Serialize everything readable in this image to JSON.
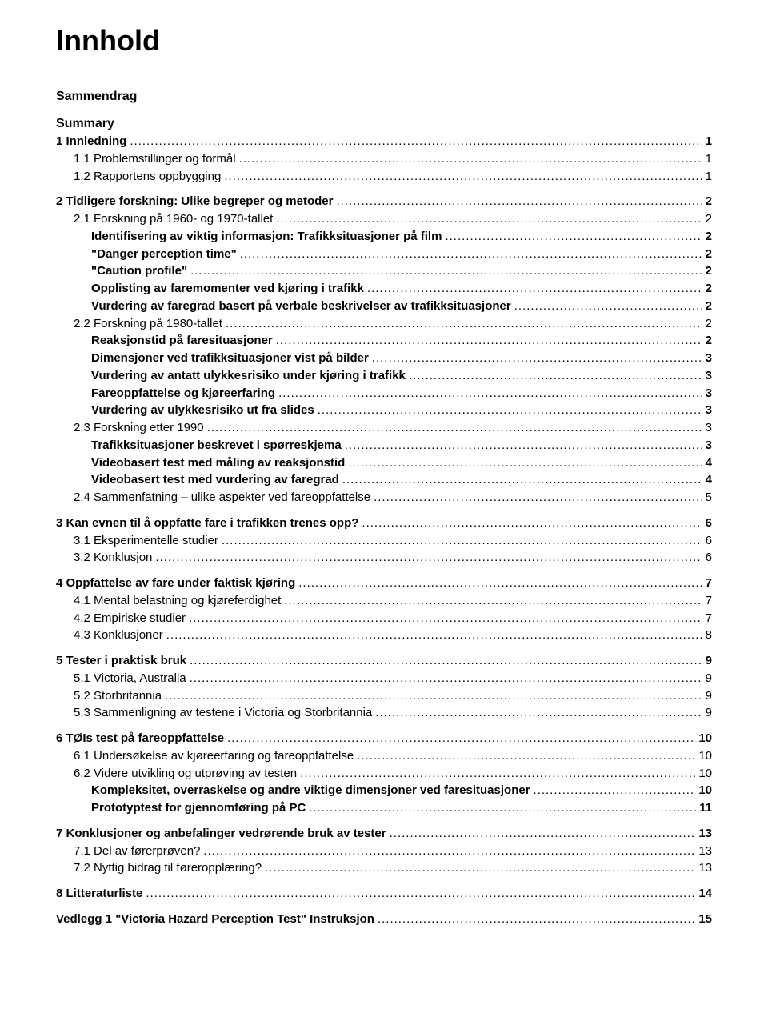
{
  "title": "Innhold",
  "preHeadings": [
    "Sammendrag",
    "Summary"
  ],
  "entries": [
    {
      "level": 0,
      "bold": true,
      "label": "1 Innledning",
      "page": "1",
      "gapBefore": false
    },
    {
      "level": 1,
      "bold": false,
      "label": "1.1 Problemstillinger og formål",
      "page": "1",
      "gapBefore": false
    },
    {
      "level": 1,
      "bold": false,
      "label": "1.2 Rapportens oppbygging",
      "page": "1",
      "gapBefore": false
    },
    {
      "level": 0,
      "bold": true,
      "label": "2 Tidligere forskning: Ulike begreper og metoder",
      "page": "2",
      "gapBefore": true
    },
    {
      "level": 1,
      "bold": false,
      "label": "2.1 Forskning på 1960- og 1970-tallet",
      "page": "2",
      "gapBefore": false
    },
    {
      "level": 2,
      "bold": true,
      "label": "Identifisering av viktig informasjon: Trafikksituasjoner på film",
      "page": "2",
      "gapBefore": false
    },
    {
      "level": 2,
      "bold": true,
      "label": "\"Danger perception time\"",
      "page": "2",
      "gapBefore": false
    },
    {
      "level": 2,
      "bold": true,
      "label": "\"Caution profile\"",
      "page": "2",
      "gapBefore": false
    },
    {
      "level": 2,
      "bold": true,
      "label": "Opplisting av faremomenter ved kjøring i trafikk",
      "page": "2",
      "gapBefore": false
    },
    {
      "level": 2,
      "bold": true,
      "label": "Vurdering av faregrad basert på verbale beskrivelser av trafikksituasjoner",
      "page": "2",
      "gapBefore": false
    },
    {
      "level": 1,
      "bold": false,
      "label": "2.2 Forskning på 1980-tallet",
      "page": "2",
      "gapBefore": false
    },
    {
      "level": 2,
      "bold": true,
      "label": "Reaksjonstid på faresituasjoner",
      "page": "2",
      "gapBefore": false
    },
    {
      "level": 2,
      "bold": true,
      "label": "Dimensjoner ved trafikksituasjoner vist på bilder",
      "page": "3",
      "gapBefore": false
    },
    {
      "level": 2,
      "bold": true,
      "label": "Vurdering av antatt ulykkesrisiko under kjøring i trafikk",
      "page": "3",
      "gapBefore": false
    },
    {
      "level": 2,
      "bold": true,
      "label": "Fareoppfattelse og kjøreerfaring",
      "page": "3",
      "gapBefore": false
    },
    {
      "level": 2,
      "bold": true,
      "label": "Vurdering av ulykkesrisiko ut fra slides",
      "page": "3",
      "gapBefore": false
    },
    {
      "level": 1,
      "bold": false,
      "label": "2.3 Forskning etter 1990",
      "page": "3",
      "gapBefore": false
    },
    {
      "level": 2,
      "bold": true,
      "label": "Trafikksituasjoner beskrevet i spørreskjema",
      "page": "3",
      "gapBefore": false
    },
    {
      "level": 2,
      "bold": true,
      "label": "Videobasert test med måling av reaksjonstid",
      "page": "4",
      "gapBefore": false
    },
    {
      "level": 2,
      "bold": true,
      "label": "Videobasert test med vurdering av faregrad",
      "page": "4",
      "gapBefore": false
    },
    {
      "level": 1,
      "bold": false,
      "label": "2.4 Sammenfatning – ulike aspekter ved fareoppfattelse",
      "page": "5",
      "gapBefore": false
    },
    {
      "level": 0,
      "bold": true,
      "label": "3 Kan evnen til å oppfatte fare i trafikken trenes opp?",
      "page": "6",
      "gapBefore": true
    },
    {
      "level": 1,
      "bold": false,
      "label": "3.1 Eksperimentelle studier",
      "page": "6",
      "gapBefore": false
    },
    {
      "level": 1,
      "bold": false,
      "label": "3.2 Konklusjon",
      "page": "6",
      "gapBefore": false
    },
    {
      "level": 0,
      "bold": true,
      "label": "4 Oppfattelse av fare under faktisk kjøring",
      "page": "7",
      "gapBefore": true
    },
    {
      "level": 1,
      "bold": false,
      "label": "4.1 Mental belastning og kjøreferdighet",
      "page": "7",
      "gapBefore": false
    },
    {
      "level": 1,
      "bold": false,
      "label": "4.2 Empiriske studier",
      "page": "7",
      "gapBefore": false
    },
    {
      "level": 1,
      "bold": false,
      "label": "4.3 Konklusjoner",
      "page": "8",
      "gapBefore": false
    },
    {
      "level": 0,
      "bold": true,
      "label": "5 Tester i praktisk bruk",
      "page": "9",
      "gapBefore": true
    },
    {
      "level": 1,
      "bold": false,
      "label": "5.1 Victoria, Australia",
      "page": "9",
      "gapBefore": false
    },
    {
      "level": 1,
      "bold": false,
      "label": "5.2 Storbritannia",
      "page": "9",
      "gapBefore": false
    },
    {
      "level": 1,
      "bold": false,
      "label": "5.3 Sammenligning av testene i Victoria og Storbritannia",
      "page": "9",
      "gapBefore": false
    },
    {
      "level": 0,
      "bold": true,
      "label": "6 TØIs test på fareoppfattelse",
      "page": "10",
      "gapBefore": true
    },
    {
      "level": 1,
      "bold": false,
      "label": "6.1 Undersøkelse av kjøreerfaring og fareoppfattelse",
      "page": "10",
      "gapBefore": false
    },
    {
      "level": 1,
      "bold": false,
      "label": "6.2 Videre utvikling og utprøving av testen",
      "page": "10",
      "gapBefore": false
    },
    {
      "level": 2,
      "bold": true,
      "label": "Kompleksitet, overraskelse og andre viktige dimensjoner ved faresituasjoner",
      "page": "10",
      "gapBefore": false
    },
    {
      "level": 2,
      "bold": true,
      "label": "Prototyptest for gjennomføring på PC",
      "page": "11",
      "gapBefore": false
    },
    {
      "level": 0,
      "bold": true,
      "label": "7 Konklusjoner og anbefalinger vedrørende bruk av tester",
      "page": "13",
      "gapBefore": true
    },
    {
      "level": 1,
      "bold": false,
      "label": "7.1 Del av førerprøven?",
      "page": "13",
      "gapBefore": false
    },
    {
      "level": 1,
      "bold": false,
      "label": "7.2 Nyttig bidrag til føreropplæring?",
      "page": "13",
      "gapBefore": false
    },
    {
      "level": 0,
      "bold": true,
      "label": "8 Litteraturliste",
      "page": "14",
      "gapBefore": true
    },
    {
      "level": 0,
      "bold": true,
      "label": "Vedlegg 1 \"Victoria Hazard Perception Test\" Instruksjon",
      "page": "15",
      "gapBefore": true
    }
  ],
  "colors": {
    "background": "#ffffff",
    "text": "#000000"
  },
  "typography": {
    "titleFontSize": 36,
    "bodyFontSize": 15,
    "preHeadingFontSize": 16,
    "fontFamily": "Arial"
  }
}
